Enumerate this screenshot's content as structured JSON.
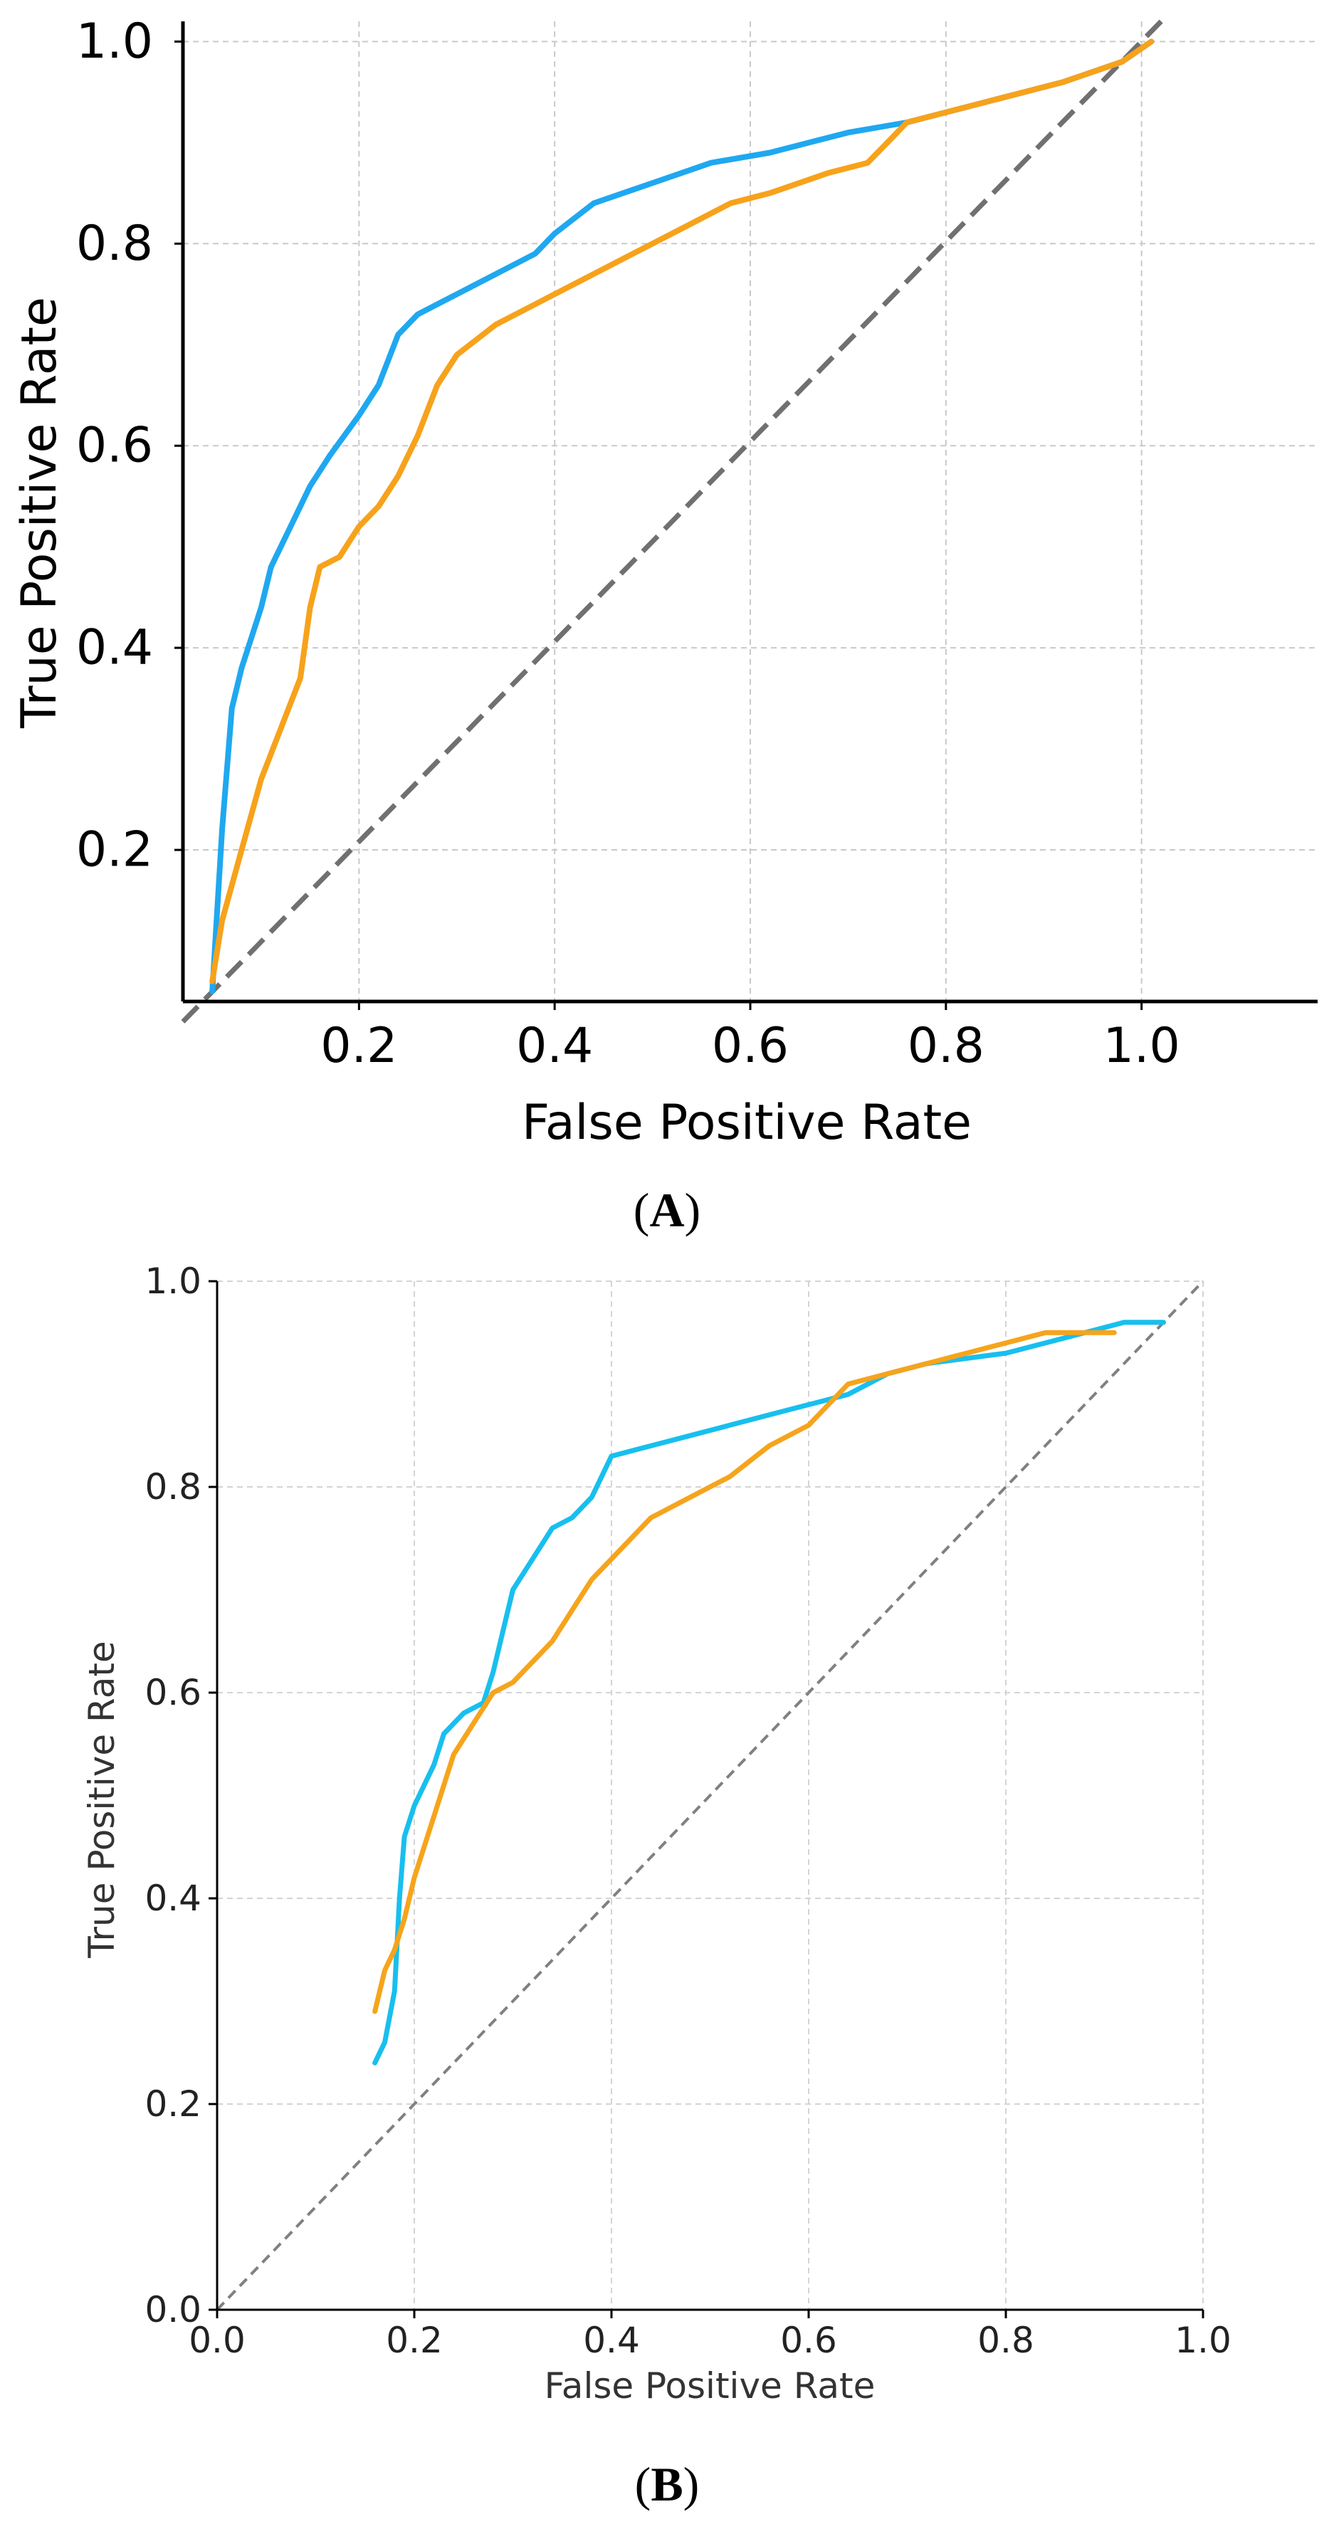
{
  "chart_data": [
    {
      "type": "line",
      "panel": "A",
      "caption": {
        "open": "(",
        "letter": "A",
        "close": ")"
      },
      "xlabel": "False Positive Rate",
      "ylabel": "True Positive Rate",
      "xlim": [
        0.02,
        1.18
      ],
      "ylim": [
        0.05,
        1.02
      ],
      "xticks": [
        "0.2",
        "0.4",
        "0.6",
        "0.8",
        "1.0"
      ],
      "yticks": [
        "0.2",
        "0.4",
        "0.6",
        "0.8",
        "1.0"
      ],
      "grid": true,
      "legend": "none",
      "diagonal": {
        "x": [
          0.02,
          1.02
        ],
        "y": [
          0.03,
          1.02
        ],
        "color": "#707070",
        "style": "dashed"
      },
      "series": [
        {
          "name": "blue",
          "color": "#1fa8f0",
          "x": [
            0.05,
            0.06,
            0.07,
            0.08,
            0.09,
            0.1,
            0.11,
            0.12,
            0.13,
            0.15,
            0.17,
            0.2,
            0.22,
            0.24,
            0.26,
            0.3,
            0.34,
            0.38,
            0.4,
            0.44,
            0.5,
            0.56,
            0.62,
            0.7,
            0.76,
            0.84,
            0.92,
            0.98,
            1.01
          ],
          "y": [
            0.06,
            0.22,
            0.34,
            0.38,
            0.41,
            0.44,
            0.48,
            0.5,
            0.52,
            0.56,
            0.59,
            0.63,
            0.66,
            0.71,
            0.73,
            0.75,
            0.77,
            0.79,
            0.81,
            0.84,
            0.86,
            0.88,
            0.89,
            0.91,
            0.92,
            0.94,
            0.96,
            0.98,
            1.0
          ]
        },
        {
          "name": "orange",
          "color": "#f7a21b",
          "x": [
            0.05,
            0.06,
            0.08,
            0.1,
            0.12,
            0.14,
            0.15,
            0.16,
            0.18,
            0.2,
            0.22,
            0.24,
            0.26,
            0.28,
            0.3,
            0.34,
            0.38,
            0.42,
            0.46,
            0.5,
            0.54,
            0.58,
            0.62,
            0.68,
            0.72,
            0.74,
            0.76,
            0.84,
            0.92,
            0.98,
            1.01
          ],
          "y": [
            0.07,
            0.13,
            0.2,
            0.27,
            0.32,
            0.37,
            0.44,
            0.48,
            0.49,
            0.52,
            0.54,
            0.57,
            0.61,
            0.66,
            0.69,
            0.72,
            0.74,
            0.76,
            0.78,
            0.8,
            0.82,
            0.84,
            0.85,
            0.87,
            0.88,
            0.9,
            0.92,
            0.94,
            0.96,
            0.98,
            1.0
          ]
        }
      ]
    },
    {
      "type": "line",
      "panel": "B",
      "caption": {
        "open": "(",
        "letter": "B",
        "close": ")"
      },
      "xlabel": "False Positive Rate",
      "ylabel": "True Positive Rate",
      "xlim": [
        0.0,
        1.0
      ],
      "ylim": [
        0.0,
        1.0
      ],
      "xticks": [
        "0.0",
        "0.2",
        "0.4",
        "0.6",
        "0.8",
        "1.0"
      ],
      "yticks": [
        "0.0",
        "0.2",
        "0.4",
        "0.6",
        "0.8",
        "1.0"
      ],
      "grid": true,
      "legend": "none",
      "diagonal": {
        "x": [
          0.0,
          1.0
        ],
        "y": [
          0.0,
          1.0
        ],
        "color": "#808080",
        "style": "dashed"
      },
      "series": [
        {
          "name": "cyan",
          "color": "#18bfee",
          "x": [
            0.16,
            0.17,
            0.18,
            0.185,
            0.19,
            0.2,
            0.21,
            0.22,
            0.23,
            0.25,
            0.27,
            0.28,
            0.29,
            0.3,
            0.32,
            0.34,
            0.36,
            0.38,
            0.4,
            0.44,
            0.48,
            0.52,
            0.56,
            0.6,
            0.64,
            0.68,
            0.72,
            0.76,
            0.8,
            0.84,
            0.88,
            0.92,
            0.96
          ],
          "y": [
            0.24,
            0.26,
            0.31,
            0.4,
            0.46,
            0.49,
            0.51,
            0.53,
            0.56,
            0.58,
            0.59,
            0.62,
            0.66,
            0.7,
            0.73,
            0.76,
            0.77,
            0.79,
            0.83,
            0.84,
            0.85,
            0.86,
            0.87,
            0.88,
            0.89,
            0.91,
            0.92,
            0.925,
            0.93,
            0.94,
            0.95,
            0.96,
            0.96
          ]
        },
        {
          "name": "orange",
          "color": "#f6a41c",
          "x": [
            0.16,
            0.17,
            0.18,
            0.19,
            0.2,
            0.21,
            0.22,
            0.23,
            0.24,
            0.26,
            0.28,
            0.3,
            0.32,
            0.34,
            0.36,
            0.38,
            0.4,
            0.44,
            0.48,
            0.52,
            0.56,
            0.6,
            0.64,
            0.68,
            0.72,
            0.76,
            0.8,
            0.84,
            0.88,
            0.91
          ],
          "y": [
            0.29,
            0.33,
            0.35,
            0.38,
            0.42,
            0.45,
            0.48,
            0.51,
            0.54,
            0.57,
            0.6,
            0.61,
            0.63,
            0.65,
            0.68,
            0.71,
            0.73,
            0.77,
            0.79,
            0.81,
            0.84,
            0.86,
            0.9,
            0.91,
            0.92,
            0.93,
            0.94,
            0.95,
            0.95,
            0.95
          ]
        }
      ]
    }
  ]
}
